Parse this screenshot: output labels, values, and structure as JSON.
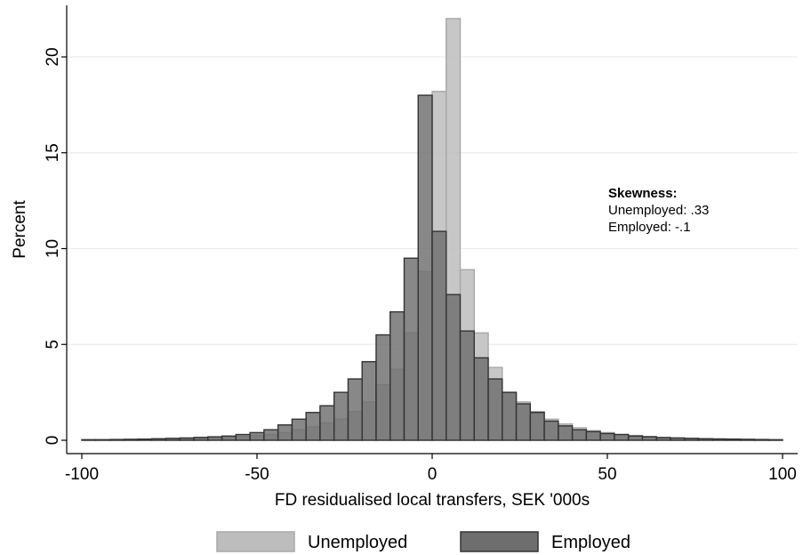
{
  "chart_data": {
    "type": "bar",
    "subtype": "overlaid-histogram",
    "xlabel": "FD residualised local transfers, SEK '000s",
    "ylabel": "Percent",
    "xlim": [
      -100,
      100
    ],
    "ylim": [
      0,
      22
    ],
    "xticks": [
      -100,
      -50,
      0,
      50,
      100
    ],
    "yticks": [
      0,
      5,
      10,
      15,
      20
    ],
    "xtick_labels": [
      "-100",
      "-50",
      "0",
      "50",
      "100"
    ],
    "ytick_labels": [
      "0",
      "5",
      "10",
      "15",
      "20"
    ],
    "grid": "horizontal",
    "legend_position": "bottom",
    "bin_width": 4,
    "bin_left_edges": [
      -100,
      -96,
      -92,
      -88,
      -84,
      -80,
      -76,
      -72,
      -68,
      -64,
      -60,
      -56,
      -52,
      -48,
      -44,
      -40,
      -36,
      -32,
      -28,
      -24,
      -20,
      -16,
      -12,
      -8,
      -4,
      0,
      4,
      8,
      12,
      16,
      20,
      24,
      28,
      32,
      36,
      40,
      44,
      48,
      52,
      56,
      60,
      64,
      68,
      72,
      76,
      80,
      84,
      88,
      92,
      96
    ],
    "series": [
      {
        "name": "Unemployed",
        "color": "#bdbdbd",
        "values": [
          0.02,
          0.02,
          0.03,
          0.03,
          0.04,
          0.05,
          0.06,
          0.08,
          0.1,
          0.12,
          0.15,
          0.2,
          0.25,
          0.3,
          0.4,
          0.55,
          0.7,
          0.9,
          1.1,
          1.5,
          2.0,
          2.9,
          3.7,
          5.6,
          8.8,
          18.2,
          22.0,
          8.9,
          5.6,
          3.8,
          2.5,
          2.0,
          1.5,
          1.1,
          0.85,
          0.65,
          0.5,
          0.4,
          0.3,
          0.25,
          0.2,
          0.15,
          0.12,
          0.1,
          0.08,
          0.06,
          0.05,
          0.04,
          0.03,
          0.02
        ]
      },
      {
        "name": "Employed",
        "color": "#6e6e6e",
        "values": [
          0.03,
          0.03,
          0.04,
          0.05,
          0.06,
          0.08,
          0.1,
          0.12,
          0.15,
          0.18,
          0.22,
          0.3,
          0.4,
          0.55,
          0.8,
          1.1,
          1.45,
          1.8,
          2.5,
          3.2,
          4.1,
          5.5,
          6.7,
          9.5,
          18.0,
          10.9,
          7.6,
          5.7,
          4.3,
          3.2,
          2.5,
          1.9,
          1.45,
          1.0,
          0.75,
          0.55,
          0.45,
          0.35,
          0.3,
          0.22,
          0.18,
          0.14,
          0.12,
          0.1,
          0.08,
          0.07,
          0.06,
          0.05,
          0.04,
          0.03
        ]
      }
    ],
    "annotation": {
      "title": "Skewness:",
      "lines": [
        "Unemployed: .33",
        "Employed: -.1"
      ]
    }
  }
}
